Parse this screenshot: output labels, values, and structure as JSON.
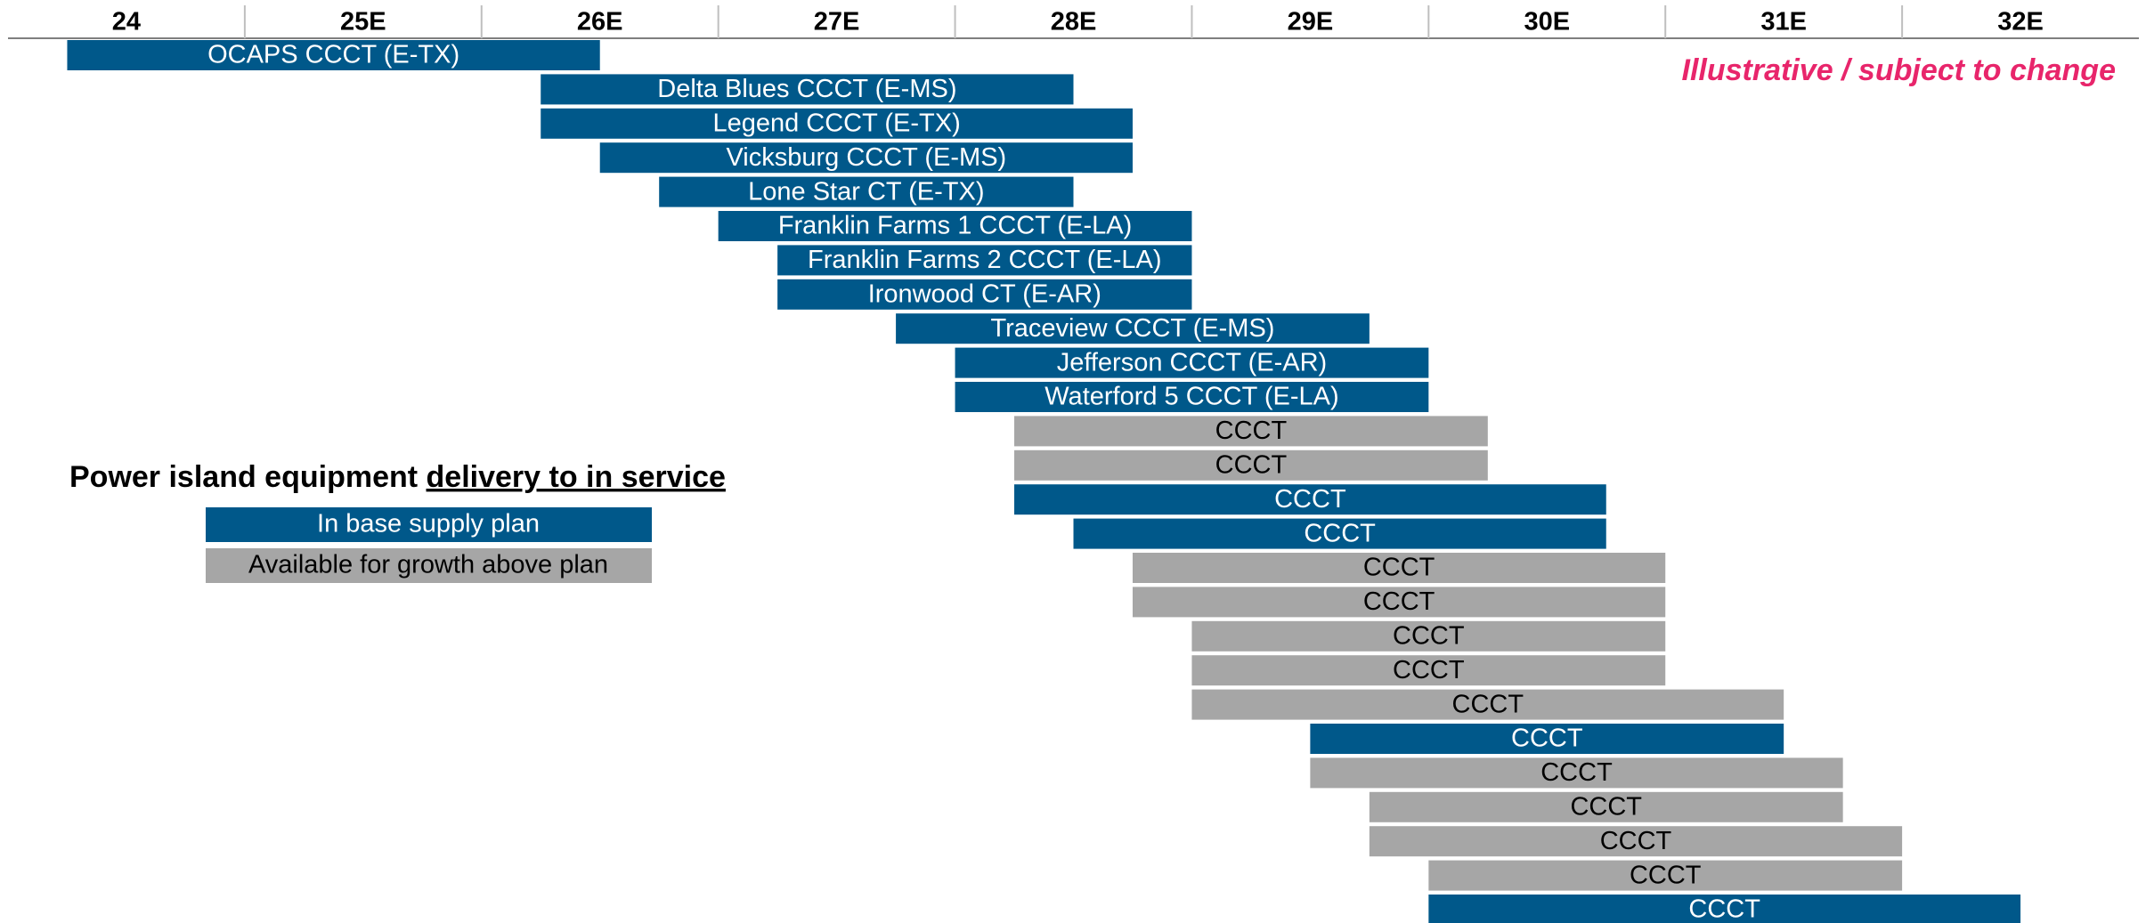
{
  "chart_data": {
    "type": "gantt",
    "categories": [
      "24",
      "25E",
      "26E",
      "27E",
      "28E",
      "29E",
      "30E",
      "31E",
      "32E"
    ],
    "xlim": [
      24,
      33
    ],
    "xticks": [
      25,
      26,
      27,
      28,
      29,
      30,
      31,
      32
    ],
    "annotation": "Illustrative / subject to change",
    "title": "Power island equipment ",
    "title_underlined": "delivery to in service",
    "legend": [
      {
        "name": "In base supply plan",
        "color": "#00588a"
      },
      {
        "name": "Available for growth above plan",
        "color": "#a6a6a6"
      }
    ],
    "bars": [
      {
        "label": "OCAPS CCCT (E-TX)",
        "start": 24.25,
        "end": 26.5,
        "color": "#00588a"
      },
      {
        "label": "Delta Blues CCCT (E-MS)",
        "start": 26.25,
        "end": 28.5,
        "color": "#00588a"
      },
      {
        "label": "Legend CCCT (E-TX)",
        "start": 26.25,
        "end": 28.75,
        "color": "#00588a"
      },
      {
        "label": "Vicksburg CCCT (E-MS)",
        "start": 26.5,
        "end": 28.75,
        "color": "#00588a"
      },
      {
        "label": "Lone Star CT (E-TX)",
        "start": 26.75,
        "end": 28.5,
        "color": "#00588a"
      },
      {
        "label": "Franklin Farms 1 CCCT (E-LA)",
        "start": 27,
        "end": 29,
        "color": "#00588a"
      },
      {
        "label": "Franklin Farms 2 CCCT (E-LA)",
        "start": 27.25,
        "end": 29,
        "color": "#00588a"
      },
      {
        "label": "Ironwood CT (E-AR)",
        "start": 27.25,
        "end": 29,
        "color": "#00588a"
      },
      {
        "label": "Traceview CCCT (E-MS)",
        "start": 27.75,
        "end": 29.75,
        "color": "#00588a"
      },
      {
        "label": "Jefferson CCCT (E-AR)",
        "start": 28,
        "end": 30,
        "color": "#00588a"
      },
      {
        "label": "Waterford 5 CCCT (E-LA)",
        "start": 28,
        "end": 30,
        "color": "#00588a"
      },
      {
        "label": "CCCT",
        "start": 28.25,
        "end": 30.25,
        "color": "#a6a6a6"
      },
      {
        "label": "CCCT",
        "start": 28.25,
        "end": 30.25,
        "color": "#a6a6a6"
      },
      {
        "label": "CCCT",
        "start": 28.25,
        "end": 30.75,
        "color": "#00588a"
      },
      {
        "label": "CCCT",
        "start": 28.5,
        "end": 30.75,
        "color": "#00588a"
      },
      {
        "label": "CCCT",
        "start": 28.75,
        "end": 31,
        "color": "#a6a6a6"
      },
      {
        "label": "CCCT",
        "start": 28.75,
        "end": 31,
        "color": "#a6a6a6"
      },
      {
        "label": "CCCT",
        "start": 29,
        "end": 31,
        "color": "#a6a6a6"
      },
      {
        "label": "CCCT",
        "start": 29,
        "end": 31,
        "color": "#a6a6a6"
      },
      {
        "label": "CCCT",
        "start": 29,
        "end": 31.5,
        "color": "#a6a6a6"
      },
      {
        "label": "CCCT",
        "start": 29.5,
        "end": 31.5,
        "color": "#00588a"
      },
      {
        "label": "CCCT",
        "start": 29.5,
        "end": 31.75,
        "color": "#a6a6a6"
      },
      {
        "label": "CCCT",
        "start": 29.75,
        "end": 31.75,
        "color": "#a6a6a6"
      },
      {
        "label": "CCCT",
        "start": 29.75,
        "end": 32,
        "color": "#a6a6a6"
      },
      {
        "label": "CCCT",
        "start": 30,
        "end": 32,
        "color": "#a6a6a6"
      },
      {
        "label": "CCCT",
        "start": 30,
        "end": 32.5,
        "color": "#00588a"
      }
    ]
  }
}
